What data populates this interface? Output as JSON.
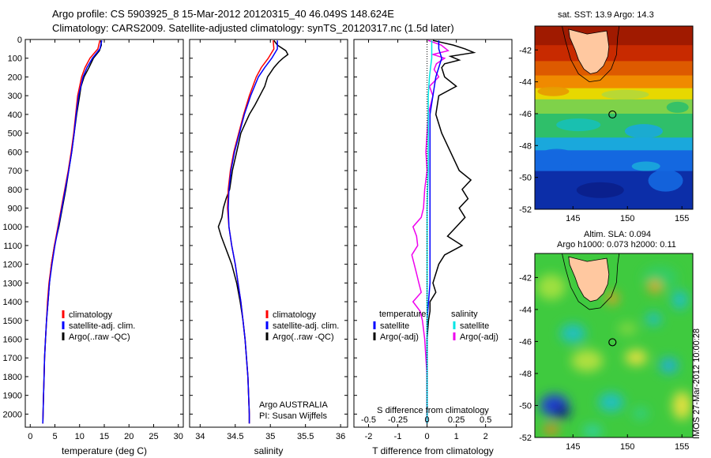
{
  "header": {
    "title_line1": "Argo profile: CS 5903925_8 15-Mar-2012 20120315_40 46.049S 148.624E",
    "title_line2": "Climatology: CARS2009. Satellite-adjusted climatology: synTS_20120317.nc (1.5d later)"
  },
  "colors": {
    "climatology": "#ff0000",
    "satellite": "#0000ff",
    "argo": "#000000",
    "cyan": "#00e5e5",
    "magenta": "#ee00ee",
    "land": "#ffc8a0"
  },
  "chart_data": [
    {
      "type": "line",
      "panel": "temperature",
      "xlabel": "temperature (deg C)",
      "ylabel": "",
      "xlim": [
        -1,
        31
      ],
      "ylim": [
        2070,
        0
      ],
      "y_reversed": true,
      "xticks": [
        "0",
        "5",
        "10",
        "15",
        "20",
        "25",
        "30"
      ],
      "yticks": [
        "0",
        "100",
        "200",
        "300",
        "400",
        "500",
        "600",
        "700",
        "800",
        "900",
        "1000",
        "1100",
        "1200",
        "1300",
        "1400",
        "1500",
        "1600",
        "1700",
        "1800",
        "1900",
        "2000"
      ],
      "legend": [
        "climatology",
        "satellite-adj. clim.",
        "Argo(..raw -QC)"
      ],
      "series": [
        {
          "name": "climatology",
          "color": "#ff0000",
          "depth": [
            5,
            50,
            100,
            150,
            200,
            300,
            400,
            500,
            600,
            700,
            800,
            900,
            1000,
            1100,
            1200,
            1300,
            1400,
            1500,
            1600,
            1700,
            1800,
            1900,
            2000,
            2050
          ],
          "values": [
            14.1,
            13.7,
            12.1,
            11.1,
            10.4,
            9.6,
            9.2,
            8.8,
            8.3,
            7.7,
            7.0,
            6.3,
            5.6,
            4.9,
            4.3,
            3.8,
            3.5,
            3.3,
            3.1,
            2.9,
            2.8,
            2.7,
            2.6,
            2.55
          ]
        },
        {
          "name": "satellite-adj. clim.",
          "color": "#0000ff",
          "depth": [
            5,
            50,
            100,
            150,
            200,
            300,
            400,
            500,
            600,
            700,
            800,
            900,
            1000,
            1100,
            1200,
            1300,
            1400,
            1500,
            1600,
            1700,
            1800,
            1900,
            2000,
            2050
          ],
          "values": [
            14.5,
            14.1,
            12.6,
            11.5,
            10.7,
            9.8,
            9.3,
            8.9,
            8.4,
            7.8,
            7.1,
            6.4,
            5.7,
            5.0,
            4.4,
            3.9,
            3.6,
            3.3,
            3.1,
            2.9,
            2.8,
            2.7,
            2.6,
            2.55
          ]
        },
        {
          "name": "Argo(..raw -QC)",
          "color": "#000000",
          "depth": [
            5,
            30,
            60,
            100,
            150,
            200,
            250,
            300,
            400,
            500,
            600,
            700,
            800,
            900,
            1000,
            1100,
            1200,
            1300,
            1400,
            1500,
            1600,
            1700,
            1800,
            1900,
            2000,
            2050
          ],
          "values": [
            14.3,
            14.4,
            14.0,
            12.8,
            11.9,
            10.9,
            10.3,
            10.0,
            9.4,
            8.9,
            8.4,
            7.8,
            7.2,
            6.5,
            5.8,
            4.9,
            4.3,
            3.9,
            3.6,
            3.3,
            3.1,
            2.9,
            2.8,
            2.7,
            2.6,
            2.55
          ]
        }
      ]
    },
    {
      "type": "line",
      "panel": "salinity",
      "xlabel": "salinity",
      "xlim": [
        33.85,
        36.1
      ],
      "ylim": [
        2070,
        0
      ],
      "xticks": [
        "34",
        "34.5",
        "35",
        "35.5",
        "36"
      ],
      "legend": [
        "climatology",
        "satellite-adj. clim.",
        "Argo(..raw -QC)"
      ],
      "annotation": [
        "Argo AUSTRALIA",
        "PI: Susan Wijffels"
      ],
      "series": [
        {
          "name": "climatology",
          "color": "#ff0000",
          "depth": [
            5,
            50,
            100,
            150,
            200,
            300,
            400,
            500,
            600,
            700,
            800,
            900,
            1000,
            1100,
            1200,
            1300,
            1400,
            1500,
            1600,
            1700,
            1800,
            1900,
            2000,
            2050
          ],
          "values": [
            35.04,
            35.05,
            34.97,
            34.87,
            34.8,
            34.7,
            34.62,
            34.55,
            34.48,
            34.43,
            34.4,
            34.39,
            34.41,
            34.45,
            34.5,
            34.54,
            34.58,
            34.61,
            34.64,
            34.66,
            34.68,
            34.69,
            34.7,
            34.7
          ]
        },
        {
          "name": "satellite-adj. clim.",
          "color": "#0000ff",
          "depth": [
            5,
            50,
            100,
            150,
            200,
            300,
            400,
            500,
            600,
            700,
            800,
            900,
            1000,
            1100,
            1200,
            1300,
            1400,
            1500,
            1600,
            1700,
            1800,
            1900,
            2000,
            2050
          ],
          "values": [
            35.1,
            35.1,
            35.02,
            34.92,
            34.83,
            34.72,
            34.63,
            34.56,
            34.49,
            34.44,
            34.41,
            34.4,
            34.41,
            34.45,
            34.5,
            34.54,
            34.58,
            34.61,
            34.64,
            34.66,
            34.68,
            34.69,
            34.7,
            34.7
          ]
        },
        {
          "name": "Argo(..raw -QC)",
          "color": "#000000",
          "depth": [
            5,
            30,
            60,
            80,
            100,
            120,
            150,
            200,
            250,
            300,
            350,
            400,
            500,
            600,
            700,
            800,
            850,
            900,
            950,
            1000,
            1050,
            1100,
            1150,
            1200,
            1300,
            1400,
            1500,
            1600,
            1700,
            1800,
            1900,
            2000,
            2050
          ],
          "values": [
            35.05,
            35.1,
            35.22,
            35.25,
            35.18,
            35.12,
            35.05,
            34.96,
            34.92,
            34.85,
            34.78,
            34.7,
            34.58,
            34.52,
            34.46,
            34.42,
            34.37,
            34.33,
            34.31,
            34.26,
            34.3,
            34.35,
            34.4,
            34.45,
            34.52,
            34.57,
            34.61,
            34.64,
            34.66,
            34.68,
            34.69,
            34.7,
            34.7
          ]
        }
      ]
    },
    {
      "type": "line",
      "panel": "differences",
      "xlabel": "T difference from climatology",
      "xlabel_top": "S difference from climatology",
      "xlim": [
        -2.5,
        2.9
      ],
      "ylim": [
        2070,
        0
      ],
      "xticks": [
        "-2",
        "-1",
        "0",
        "1",
        "2"
      ],
      "xticks_s": [
        "-0.5",
        "-0.25",
        "0",
        "0.25",
        "0.5"
      ],
      "legend_t": {
        "heading": "temperature",
        "items": [
          "satellite",
          "Argo(-adj)"
        ]
      },
      "legend_s": {
        "heading": "salinity",
        "items": [
          "satellite",
          "Argo(-adj)"
        ]
      },
      "series": [
        {
          "name": "satellite",
          "group": "temperature",
          "color": "#0000ff",
          "depth": [
            5,
            50,
            100,
            150,
            200,
            300,
            400,
            500,
            700,
            900,
            1100,
            1300,
            1500,
            1700,
            1900,
            2050
          ],
          "values": [
            0.4,
            0.4,
            0.5,
            0.4,
            0.3,
            0.2,
            0.1,
            0.1,
            0.1,
            0.1,
            0.1,
            0.1,
            0.0,
            0.0,
            0.0,
            0.0
          ]
        },
        {
          "name": "Argo(-adj)",
          "group": "temperature",
          "color": "#000000",
          "depth": [
            5,
            30,
            50,
            70,
            90,
            110,
            130,
            150,
            200,
            250,
            300,
            400,
            500,
            600,
            700,
            750,
            800,
            850,
            900,
            950,
            1000,
            1050,
            1100,
            1150,
            1200,
            1250,
            1300,
            1350,
            1400,
            1450,
            1500,
            1600,
            1700,
            1800,
            1900,
            2000,
            2050
          ],
          "values": [
            0.2,
            0.9,
            1.3,
            1.6,
            0.8,
            1.1,
            0.6,
            0.5,
            0.6,
            1.0,
            0.4,
            0.3,
            0.5,
            0.8,
            1.1,
            1.5,
            1.2,
            1.4,
            1.1,
            1.3,
            1.0,
            0.7,
            1.2,
            0.6,
            0.4,
            0.3,
            0.2,
            0.3,
            0.1,
            0.1,
            0.05,
            0.0,
            0.0,
            0.0,
            0.0,
            0.0,
            0.0
          ]
        },
        {
          "name": "satellite",
          "group": "salinity",
          "color": "#00e5e5",
          "depth": [
            5,
            50,
            100,
            150,
            200,
            300,
            400,
            500,
            700,
            900,
            1100,
            1300,
            1500,
            1700,
            1900,
            2050
          ],
          "values": [
            0.04,
            0.04,
            0.04,
            0.03,
            0.02,
            0.01,
            0.01,
            0.01,
            0.01,
            0.0,
            0.0,
            0.0,
            0.0,
            0.0,
            0.0,
            0.0
          ]
        },
        {
          "name": "Argo(-adj)",
          "group": "salinity",
          "color": "#ee00ee",
          "depth": [
            5,
            30,
            60,
            80,
            100,
            130,
            160,
            200,
            250,
            300,
            400,
            500,
            600,
            700,
            800,
            900,
            950,
            1000,
            1050,
            1100,
            1150,
            1200,
            1250,
            1300,
            1350,
            1400,
            1450,
            1500,
            1600,
            1700,
            1800,
            1900,
            2000,
            2050
          ],
          "values": [
            0.01,
            0.12,
            0.18,
            0.05,
            0.15,
            0.08,
            0.06,
            0.1,
            0.02,
            0.05,
            0.01,
            0.0,
            -0.01,
            0.0,
            -0.02,
            -0.03,
            -0.05,
            -0.12,
            -0.09,
            -0.08,
            -0.13,
            -0.11,
            -0.09,
            -0.07,
            -0.05,
            -0.12,
            -0.06,
            -0.04,
            -0.02,
            -0.01,
            0.0,
            0.0,
            0.0,
            0.0
          ]
        }
      ]
    },
    {
      "type": "heatmap",
      "panel": "sst-map",
      "title": "sat. SST: 13.9 Argo: 14.3",
      "xlim": [
        141.5,
        156
      ],
      "ylim": [
        -52,
        -40.5
      ],
      "xticks": [
        "145",
        "150",
        "155"
      ],
      "yticks": [
        "-42",
        "-44",
        "-46",
        "-48",
        "-50",
        "-52"
      ],
      "marker": {
        "lon": 148.624,
        "lat": -46.049
      }
    },
    {
      "type": "heatmap",
      "panel": "sla-map",
      "title_line1": "Altim. SLA: 0.094",
      "title_line2": "Argo h1000: 0.073 h2000: 0.11",
      "xlim": [
        141.5,
        156
      ],
      "ylim": [
        -52,
        -40.5
      ],
      "xticks": [
        "145",
        "150",
        "155"
      ],
      "yticks": [
        "-42",
        "-44",
        "-46",
        "-48",
        "-50",
        "-52"
      ],
      "marker": {
        "lon": 148.624,
        "lat": -46.049
      }
    }
  ],
  "credit": "IMOS 27-Mar-2012 10:00:28"
}
